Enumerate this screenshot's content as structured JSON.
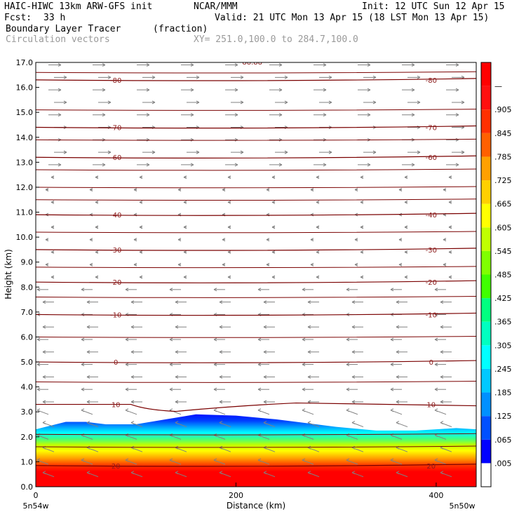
{
  "header": {
    "model": "HAIC-HIWC 13km ARW-GFS init",
    "org": "NCAR/MMM",
    "init": "Init: 12 UTC Sun 12 Apr 15",
    "fcst_label": "Fcst:",
    "fcst_value": "33 h",
    "valid": "Valid: 21 UTC Mon 13 Apr 15 (18 LST Mon 13 Apr 15)",
    "field_name": "Boundary Layer Tracer",
    "field_units": "(fraction)",
    "vector_label": "Circulation vectors",
    "xy_range": "XY= 251.0,100.0 to 284.7,100.0"
  },
  "chart_data": {
    "type": "cross-section",
    "ylabel": "Height (km)",
    "xlabel": "Distance (km)",
    "ylim": [
      0,
      17
    ],
    "xlim": [
      0,
      440
    ],
    "y_ticks": [
      "0.0",
      "1.0",
      "2.0",
      "3.0",
      "4.0",
      "5.0",
      "6.0",
      "7.0",
      "8.0",
      "9.0",
      "10.0",
      "11.0",
      "12.0",
      "13.0",
      "14.0",
      "15.0",
      "16.0",
      "17.0"
    ],
    "x_ticks": [
      {
        "value": 0,
        "label": "0"
      },
      {
        "value": 200,
        "label": "200"
      },
      {
        "value": 400,
        "label": "400"
      }
    ],
    "endpoints": {
      "left": "5n54w",
      "right": "5n50w"
    },
    "tracer_top_km": [
      [
        0,
        2.3
      ],
      [
        30,
        2.6
      ],
      [
        50,
        2.6
      ],
      [
        70,
        2.5
      ],
      [
        100,
        2.5
      ],
      [
        130,
        2.7
      ],
      [
        160,
        2.9
      ],
      [
        200,
        2.85
      ],
      [
        240,
        2.7
      ],
      [
        280,
        2.5
      ],
      [
        300,
        2.4
      ],
      [
        340,
        2.25
      ],
      [
        380,
        2.25
      ],
      [
        420,
        2.35
      ],
      [
        440,
        2.3
      ]
    ],
    "temperature_contours": [
      {
        "label": "-80",
        "height_km": 16.3
      },
      {
        "label": "-70",
        "height_km": 14.4
      },
      {
        "label": "-60",
        "height_km": 13.2
      },
      {
        "label": "-40",
        "height_km": 10.9
      },
      {
        "label": "-30",
        "height_km": 9.5
      },
      {
        "label": "-20",
        "height_km": 8.2
      },
      {
        "label": "-10",
        "height_km": 6.9
      },
      {
        "label": "0",
        "height_km": 5.0
      },
      {
        "label": "10",
        "height_km": 3.3
      },
      {
        "label": "20",
        "height_km": 0.85
      }
    ],
    "top_label_fragment": "-88.88",
    "colorbar": {
      "labels": [
        ".005",
        ".065",
        ".125",
        ".185",
        ".245",
        ".305",
        ".365",
        ".425",
        ".485",
        ".545",
        ".605",
        ".665",
        ".725",
        ".785",
        ".845",
        ".905",
        "—"
      ],
      "colors": [
        "#ffffff",
        "#0000ff",
        "#0050ff",
        "#0090ff",
        "#00c8ff",
        "#00ffff",
        "#00ffc0",
        "#00ff80",
        "#40ff00",
        "#80ff00",
        "#c0ff00",
        "#ffff00",
        "#ffd000",
        "#ffa000",
        "#ff6000",
        "#ff3000",
        "#ff1010",
        "#ff0000"
      ]
    }
  }
}
